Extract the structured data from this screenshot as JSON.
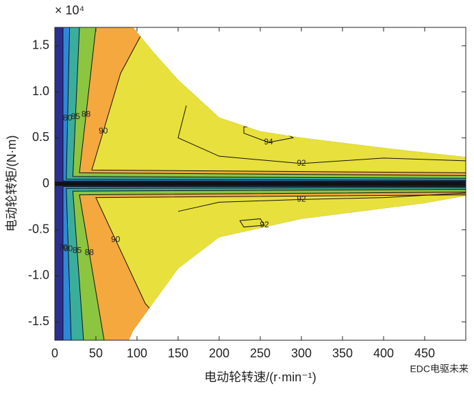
{
  "chart_data": {
    "type": "contour",
    "x_label": "电动轮转速/(r·min⁻¹)",
    "y_label": "电动轮转矩/(N·m)",
    "y_multiplier": "× 10⁴",
    "watermark": "EDC电驱未来",
    "xlim": [
      0,
      500
    ],
    "ylim": [
      -1.7,
      1.7
    ],
    "xticks": [
      0,
      50,
      100,
      150,
      200,
      250,
      300,
      350,
      400,
      450
    ],
    "yticks": [
      {
        "value": -1.5,
        "label": "-1.5"
      },
      {
        "value": -1,
        "label": "-1.0"
      },
      {
        "value": -0.5,
        "label": "-0.5"
      },
      0,
      0.5,
      {
        "value": 1,
        "label": "1.0"
      },
      1.5
    ],
    "envelope": {
      "color": "#2b2f8f",
      "points": [
        [
          0,
          1.7
        ],
        [
          95,
          1.7
        ],
        [
          120,
          1.43
        ],
        [
          150,
          1.13
        ],
        [
          200,
          0.72
        ],
        [
          250,
          0.57
        ],
        [
          300,
          0.5
        ],
        [
          400,
          0.39
        ],
        [
          500,
          0.29
        ],
        [
          500,
          -0.13
        ],
        [
          450,
          -0.21
        ],
        [
          300,
          -0.38
        ],
        [
          200,
          -0.58
        ],
        [
          150,
          -0.92
        ],
        [
          120,
          -1.29
        ],
        [
          95,
          -1.6
        ],
        [
          90,
          -1.7
        ],
        [
          0,
          -1.7
        ]
      ]
    },
    "regions": [
      {
        "color": "#2a8ad6",
        "points": [
          [
            10,
            0.03
          ],
          [
            10,
            1.7
          ],
          [
            500,
            1.7
          ],
          [
            500,
            0.03
          ]
        ]
      },
      {
        "color": "#2a8ad6",
        "label": "70",
        "points": [
          [
            10,
            -0.03
          ],
          [
            10,
            -1.7
          ],
          [
            500,
            -1.7
          ],
          [
            500,
            -0.03
          ]
        ]
      },
      {
        "color": "#3aae9c",
        "label": "80",
        "points": [
          [
            14,
            0.05
          ],
          [
            18,
            1.7
          ],
          [
            500,
            1.7
          ],
          [
            500,
            0.04
          ]
        ]
      },
      {
        "color": "#3aae9c",
        "label": "80",
        "points": [
          [
            14,
            -0.05
          ],
          [
            20,
            -1.7
          ],
          [
            500,
            -1.7
          ],
          [
            500,
            -0.04
          ]
        ]
      },
      {
        "color": "#8cc540",
        "label": "85",
        "points": [
          [
            22,
            0.08
          ],
          [
            30,
            1.7
          ],
          [
            500,
            1.7
          ],
          [
            500,
            0.06
          ]
        ]
      },
      {
        "color": "#8cc540",
        "label": "85",
        "points": [
          [
            22,
            -0.08
          ],
          [
            35,
            -1.7
          ],
          [
            500,
            -1.7
          ],
          [
            500,
            -0.06
          ]
        ]
      },
      {
        "color": "#f4a83e",
        "label": "88",
        "points": [
          [
            30,
            0.12
          ],
          [
            50,
            1.7
          ],
          [
            500,
            1.7
          ],
          [
            500,
            0.09
          ]
        ]
      },
      {
        "color": "#f4a83e",
        "label": "88",
        "points": [
          [
            30,
            -0.12
          ],
          [
            60,
            -1.7
          ],
          [
            500,
            -1.7
          ],
          [
            500,
            -0.09
          ]
        ]
      },
      {
        "color": "#e8e03c",
        "label": "90",
        "points": [
          [
            45,
            0.15
          ],
          [
            80,
            1.2
          ],
          [
            110,
            1.7
          ],
          [
            500,
            1.7
          ],
          [
            500,
            0.12
          ]
        ]
      },
      {
        "color": "#e8e03c",
        "label": "90",
        "points": [
          [
            50,
            -0.15
          ],
          [
            110,
            -1.3
          ],
          [
            150,
            -1.7
          ],
          [
            500,
            -1.7
          ],
          [
            500,
            -0.12
          ]
        ]
      }
    ],
    "lines": [
      {
        "label": "92",
        "points": [
          [
            160,
            0.85
          ],
          [
            150,
            0.5
          ],
          [
            200,
            0.3
          ],
          [
            300,
            0.22
          ],
          [
            400,
            0.28
          ],
          [
            500,
            0.25
          ]
        ]
      },
      {
        "label": "94",
        "points": [
          [
            230,
            0.62
          ],
          [
            270,
            0.6
          ],
          [
            290,
            0.5
          ],
          [
            260,
            0.45
          ],
          [
            230,
            0.55
          ],
          [
            230,
            0.62
          ]
        ]
      },
      {
        "label": "92",
        "points": [
          [
            150,
            -0.3
          ],
          [
            200,
            -0.2
          ],
          [
            300,
            -0.17
          ],
          [
            400,
            -0.15
          ],
          [
            500,
            -0.1
          ]
        ]
      },
      {
        "label": "92",
        "points": [
          [
            225,
            -0.4
          ],
          [
            250,
            -0.38
          ],
          [
            255,
            -0.45
          ],
          [
            230,
            -0.47
          ],
          [
            225,
            -0.4
          ]
        ]
      }
    ]
  }
}
